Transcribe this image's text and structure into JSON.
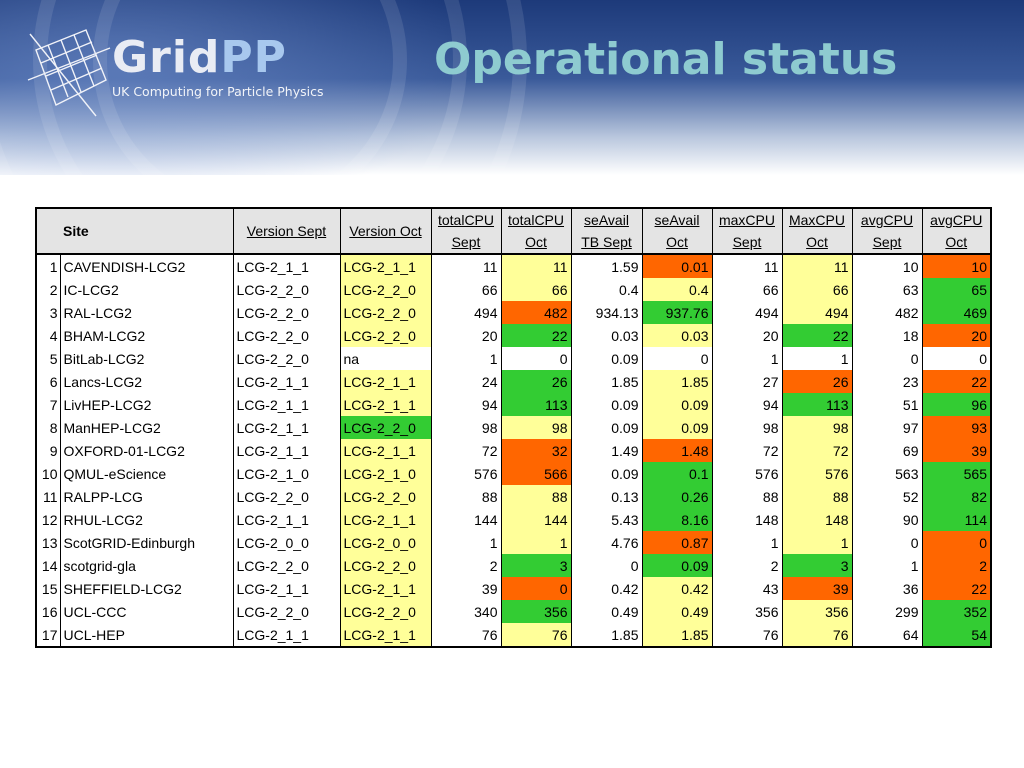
{
  "header": {
    "logo_grid": "Grid",
    "logo_pp": "PP",
    "tagline": "UK Computing for Particle Physics",
    "title": "Operational status"
  },
  "colors": {
    "yellow": "#ffff99",
    "green": "#33cc33",
    "orange": "#ff6600",
    "header_bg": "#e4e4e4",
    "title": "#8ecbd0"
  },
  "table": {
    "headers": [
      {
        "l1": "Site",
        "l2": ""
      },
      {
        "l1": "Version Sept",
        "l2": ""
      },
      {
        "l1": "Version Oct",
        "l2": ""
      },
      {
        "l1": "totalCPU",
        "l2": "Sept"
      },
      {
        "l1": "totalCPU",
        "l2": "Oct"
      },
      {
        "l1": "seAvail",
        "l2": "TB Sept"
      },
      {
        "l1": "seAvail",
        "l2": "Oct"
      },
      {
        "l1": "maxCPU",
        "l2": "Sept"
      },
      {
        "l1": "MaxCPU",
        "l2": "Oct"
      },
      {
        "l1": "avgCPU",
        "l2": "Sept"
      },
      {
        "l1": "avgCPU",
        "l2": "Oct"
      }
    ],
    "rows": [
      {
        "n": "1",
        "site": "CAVENDISH-LCG2",
        "vs": "LCG-2_1_1",
        "vo": "LCG-2_1_1",
        "vo_c": "yellow",
        "tcs": "11",
        "tco": "11",
        "tco_c": "yellow",
        "ses": "1.59",
        "seo": "0.01",
        "seo_c": "orange",
        "mcs": "11",
        "mco": "11",
        "mco_c": "yellow",
        "acs": "10",
        "aco": "10",
        "aco_c": "orange"
      },
      {
        "n": "2",
        "site": "IC-LCG2",
        "vs": "LCG-2_2_0",
        "vo": "LCG-2_2_0",
        "vo_c": "yellow",
        "tcs": "66",
        "tco": "66",
        "tco_c": "yellow",
        "ses": "0.4",
        "seo": "0.4",
        "seo_c": "yellow",
        "mcs": "66",
        "mco": "66",
        "mco_c": "yellow",
        "acs": "63",
        "aco": "65",
        "aco_c": "green"
      },
      {
        "n": "3",
        "site": "RAL-LCG2",
        "vs": "LCG-2_2_0",
        "vo": "LCG-2_2_0",
        "vo_c": "yellow",
        "tcs": "494",
        "tco": "482",
        "tco_c": "orange",
        "ses": "934.13",
        "seo": "937.76",
        "seo_c": "green",
        "mcs": "494",
        "mco": "494",
        "mco_c": "yellow",
        "acs": "482",
        "aco": "469",
        "aco_c": "green"
      },
      {
        "n": "4",
        "site": "BHAM-LCG2",
        "vs": "LCG-2_2_0",
        "vo": "LCG-2_2_0",
        "vo_c": "yellow",
        "tcs": "20",
        "tco": "22",
        "tco_c": "green",
        "ses": "0.03",
        "seo": "0.03",
        "seo_c": "yellow",
        "mcs": "20",
        "mco": "22",
        "mco_c": "green",
        "acs": "18",
        "aco": "20",
        "aco_c": "orange"
      },
      {
        "n": "5",
        "site": "BitLab-LCG2",
        "vs": "LCG-2_2_0",
        "vo": "na",
        "vo_c": "none",
        "tcs": "1",
        "tco": "0",
        "tco_c": "none",
        "ses": "0.09",
        "seo": "0",
        "seo_c": "none",
        "mcs": "1",
        "mco": "1",
        "mco_c": "none",
        "acs": "0",
        "aco": "0",
        "aco_c": "none"
      },
      {
        "n": "6",
        "site": "Lancs-LCG2",
        "vs": "LCG-2_1_1",
        "vo": "LCG-2_1_1",
        "vo_c": "yellow",
        "tcs": "24",
        "tco": "26",
        "tco_c": "green",
        "ses": "1.85",
        "seo": "1.85",
        "seo_c": "yellow",
        "mcs": "27",
        "mco": "26",
        "mco_c": "orange",
        "acs": "23",
        "aco": "22",
        "aco_c": "orange"
      },
      {
        "n": "7",
        "site": "LivHEP-LCG2",
        "vs": "LCG-2_1_1",
        "vo": "LCG-2_1_1",
        "vo_c": "yellow",
        "tcs": "94",
        "tco": "113",
        "tco_c": "green",
        "ses": "0.09",
        "seo": "0.09",
        "seo_c": "yellow",
        "mcs": "94",
        "mco": "113",
        "mco_c": "green",
        "acs": "51",
        "aco": "96",
        "aco_c": "green"
      },
      {
        "n": "8",
        "site": "ManHEP-LCG2",
        "vs": "LCG-2_1_1",
        "vo": "LCG-2_2_0",
        "vo_c": "green",
        "tcs": "98",
        "tco": "98",
        "tco_c": "yellow",
        "ses": "0.09",
        "seo": "0.09",
        "seo_c": "yellow",
        "mcs": "98",
        "mco": "98",
        "mco_c": "yellow",
        "acs": "97",
        "aco": "93",
        "aco_c": "orange"
      },
      {
        "n": "9",
        "site": "OXFORD-01-LCG2",
        "vs": "LCG-2_1_1",
        "vo": "LCG-2_1_1",
        "vo_c": "yellow",
        "tcs": "72",
        "tco": "32",
        "tco_c": "orange",
        "ses": "1.49",
        "seo": "1.48",
        "seo_c": "orange",
        "mcs": "72",
        "mco": "72",
        "mco_c": "yellow",
        "acs": "69",
        "aco": "39",
        "aco_c": "orange"
      },
      {
        "n": "10",
        "site": "QMUL-eScience",
        "vs": "LCG-2_1_0",
        "vo": "LCG-2_1_0",
        "vo_c": "yellow",
        "tcs": "576",
        "tco": "566",
        "tco_c": "orange",
        "ses": "0.09",
        "seo": "0.1",
        "seo_c": "green",
        "mcs": "576",
        "mco": "576",
        "mco_c": "yellow",
        "acs": "563",
        "aco": "565",
        "aco_c": "green"
      },
      {
        "n": "11",
        "site": "RALPP-LCG",
        "vs": "LCG-2_2_0",
        "vo": "LCG-2_2_0",
        "vo_c": "yellow",
        "tcs": "88",
        "tco": "88",
        "tco_c": "yellow",
        "ses": "0.13",
        "seo": "0.26",
        "seo_c": "green",
        "mcs": "88",
        "mco": "88",
        "mco_c": "yellow",
        "acs": "52",
        "aco": "82",
        "aco_c": "green"
      },
      {
        "n": "12",
        "site": "RHUL-LCG2",
        "vs": "LCG-2_1_1",
        "vo": "LCG-2_1_1",
        "vo_c": "yellow",
        "tcs": "144",
        "tco": "144",
        "tco_c": "yellow",
        "ses": "5.43",
        "seo": "8.16",
        "seo_c": "green",
        "mcs": "148",
        "mco": "148",
        "mco_c": "yellow",
        "acs": "90",
        "aco": "114",
        "aco_c": "green"
      },
      {
        "n": "13",
        "site": "ScotGRID-Edinburgh",
        "vs": "LCG-2_0_0",
        "vo": "LCG-2_0_0",
        "vo_c": "yellow",
        "tcs": "1",
        "tco": "1",
        "tco_c": "yellow",
        "ses": "4.76",
        "seo": "0.87",
        "seo_c": "orange",
        "mcs": "1",
        "mco": "1",
        "mco_c": "yellow",
        "acs": "0",
        "aco": "0",
        "aco_c": "orange"
      },
      {
        "n": "14",
        "site": "scotgrid-gla",
        "vs": "LCG-2_2_0",
        "vo": "LCG-2_2_0",
        "vo_c": "yellow",
        "tcs": "2",
        "tco": "3",
        "tco_c": "green",
        "ses": "0",
        "seo": "0.09",
        "seo_c": "green",
        "mcs": "2",
        "mco": "3",
        "mco_c": "green",
        "acs": "1",
        "aco": "2",
        "aco_c": "orange"
      },
      {
        "n": "15",
        "site": "SHEFFIELD-LCG2",
        "vs": "LCG-2_1_1",
        "vo": "LCG-2_1_1",
        "vo_c": "yellow",
        "tcs": "39",
        "tco": "0",
        "tco_c": "orange",
        "ses": "0.42",
        "seo": "0.42",
        "seo_c": "yellow",
        "mcs": "43",
        "mco": "39",
        "mco_c": "orange",
        "acs": "36",
        "aco": "22",
        "aco_c": "orange"
      },
      {
        "n": "16",
        "site": "UCL-CCC",
        "vs": "LCG-2_2_0",
        "vo": "LCG-2_2_0",
        "vo_c": "yellow",
        "tcs": "340",
        "tco": "356",
        "tco_c": "green",
        "ses": "0.49",
        "seo": "0.49",
        "seo_c": "yellow",
        "mcs": "356",
        "mco": "356",
        "mco_c": "yellow",
        "acs": "299",
        "aco": "352",
        "aco_c": "green"
      },
      {
        "n": "17",
        "site": "UCL-HEP",
        "vs": "LCG-2_1_1",
        "vo": "LCG-2_1_1",
        "vo_c": "yellow",
        "tcs": "76",
        "tco": "76",
        "tco_c": "yellow",
        "ses": "1.85",
        "seo": "1.85",
        "seo_c": "yellow",
        "mcs": "76",
        "mco": "76",
        "mco_c": "yellow",
        "acs": "64",
        "aco": "54",
        "aco_c": "green"
      }
    ]
  }
}
